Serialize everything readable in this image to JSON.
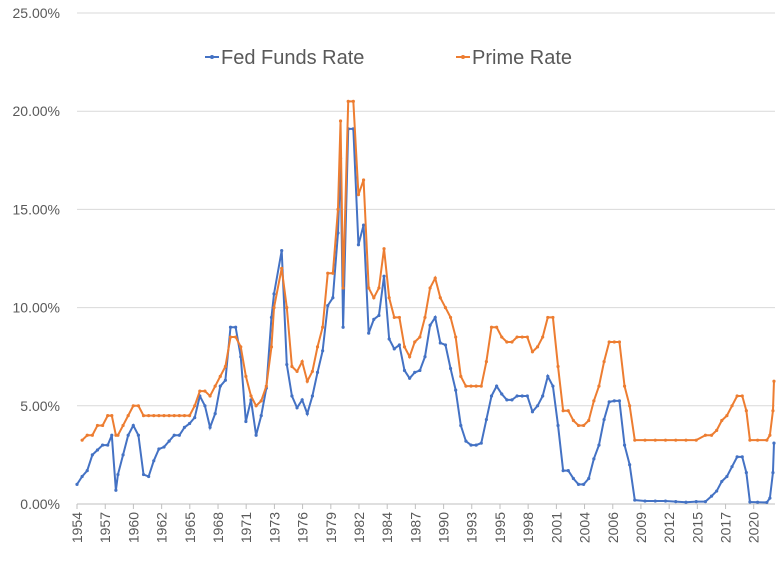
{
  "chart_data": {
    "type": "line",
    "x": [
      1954.5,
      1955,
      1955.5,
      1956,
      1956.5,
      1957,
      1957.5,
      1957.9,
      1958.3,
      1958.5,
      1959,
      1959.5,
      1960,
      1960.5,
      1961,
      1961.5,
      1962,
      1962.5,
      1963,
      1963.5,
      1964,
      1964.5,
      1965,
      1965.5,
      1966,
      1966.5,
      1967,
      1967.5,
      1968,
      1968.5,
      1969,
      1969.5,
      1970,
      1970.5,
      1971,
      1971.5,
      1972,
      1972.5,
      1973,
      1973.5,
      1973.75,
      1974.5,
      1975,
      1975.5,
      1976,
      1976.5,
      1977,
      1977.5,
      1978,
      1978.5,
      1979,
      1979.5,
      1980,
      1980.25,
      1980.5,
      1981,
      1981.5,
      1982,
      1982.5,
      1983,
      1983.5,
      1984,
      1984.5,
      1985,
      1985.5,
      1986,
      1986.5,
      1987,
      1987.5,
      1988,
      1988.5,
      1989,
      1989.5,
      1990,
      1990.5,
      1991,
      1991.5,
      1992,
      1992.5,
      1993,
      1993.5,
      1994,
      1994.5,
      1995,
      1995.5,
      1996,
      1996.5,
      1997,
      1997.5,
      1998,
      1998.5,
      1999,
      1999.5,
      2000,
      2000.5,
      2001,
      2001.5,
      2002,
      2002.5,
      2003,
      2003.5,
      2004,
      2004.5,
      2005,
      2005.5,
      2006,
      2006.5,
      2007,
      2007.5,
      2008,
      2008.5,
      2009,
      2010,
      2011,
      2012,
      2013,
      2014,
      2015,
      2015.9,
      2016.5,
      2017,
      2017.5,
      2018,
      2018.5,
      2019,
      2019.5,
      2019.9,
      2020.25,
      2021,
      2021.9,
      2022.2,
      2022.5,
      2022.6
    ],
    "series": [
      {
        "name": "Fed Funds Rate",
        "color": "#4472c4",
        "values": [
          1.0,
          1.4,
          1.7,
          2.5,
          2.75,
          3.0,
          3.0,
          3.5,
          0.7,
          1.5,
          2.5,
          3.5,
          4.0,
          3.5,
          1.5,
          1.4,
          2.2,
          2.8,
          2.9,
          3.2,
          3.5,
          3.5,
          3.9,
          4.1,
          4.4,
          5.5,
          5.0,
          3.9,
          4.6,
          6.0,
          6.3,
          9.0,
          9.0,
          7.5,
          4.2,
          5.3,
          3.5,
          4.5,
          5.9,
          9.5,
          10.7,
          12.9,
          7.1,
          5.5,
          4.9,
          5.3,
          4.6,
          5.5,
          6.7,
          7.8,
          10.1,
          10.5,
          13.8,
          17.6,
          9.0,
          19.1,
          19.1,
          13.2,
          14.2,
          8.7,
          9.4,
          9.6,
          11.6,
          8.4,
          7.9,
          8.1,
          6.8,
          6.4,
          6.7,
          6.8,
          7.5,
          9.1,
          9.5,
          8.2,
          8.1,
          6.9,
          5.8,
          4.0,
          3.2,
          3.0,
          3.0,
          3.1,
          4.3,
          5.5,
          6.0,
          5.6,
          5.3,
          5.3,
          5.5,
          5.5,
          5.5,
          4.7,
          5.0,
          5.5,
          6.5,
          6.0,
          4.0,
          1.7,
          1.7,
          1.3,
          1.0,
          1.0,
          1.3,
          2.3,
          3.0,
          4.3,
          5.2,
          5.25,
          5.25,
          3.0,
          2.0,
          0.2,
          0.15,
          0.15,
          0.15,
          0.12,
          0.09,
          0.12,
          0.12,
          0.4,
          0.66,
          1.15,
          1.4,
          1.9,
          2.4,
          2.4,
          1.6,
          0.1,
          0.09,
          0.08,
          0.3,
          1.6,
          3.1
        ]
      },
      {
        "name": "Prime Rate",
        "color": "#ed7d31",
        "values": [
          null,
          3.25,
          3.5,
          3.5,
          4.0,
          4.0,
          4.5,
          4.5,
          3.5,
          3.5,
          4.0,
          4.5,
          5.0,
          5.0,
          4.5,
          4.5,
          4.5,
          4.5,
          4.5,
          4.5,
          4.5,
          4.5,
          4.5,
          4.5,
          5.0,
          5.75,
          5.75,
          5.5,
          6.0,
          6.5,
          7.0,
          8.5,
          8.5,
          8.0,
          6.5,
          5.5,
          5.0,
          5.25,
          6.0,
          8.0,
          10.0,
          12.0,
          10.0,
          7.0,
          6.75,
          7.25,
          6.25,
          6.75,
          8.0,
          9.0,
          11.75,
          11.75,
          15.0,
          19.5,
          11.0,
          20.5,
          20.5,
          15.75,
          16.5,
          11.0,
          10.5,
          11.0,
          13.0,
          10.5,
          9.5,
          9.5,
          8.0,
          7.5,
          8.25,
          8.5,
          9.5,
          11.0,
          11.5,
          10.5,
          10.0,
          9.5,
          8.5,
          6.5,
          6.0,
          6.0,
          6.0,
          6.0,
          7.25,
          9.0,
          9.0,
          8.5,
          8.25,
          8.25,
          8.5,
          8.5,
          8.5,
          7.75,
          8.0,
          8.5,
          9.5,
          9.5,
          7.0,
          4.75,
          4.75,
          4.25,
          4.0,
          4.0,
          4.25,
          5.25,
          6.0,
          7.25,
          8.25,
          8.25,
          8.25,
          6.0,
          5.0,
          3.25,
          3.25,
          3.25,
          3.25,
          3.25,
          3.25,
          3.25,
          3.5,
          3.5,
          3.75,
          4.25,
          4.5,
          5.0,
          5.5,
          5.5,
          4.75,
          3.25,
          3.25,
          3.25,
          3.5,
          4.75,
          6.25
        ]
      }
    ],
    "xlim": [
      1954.5,
      2022.7
    ],
    "xticks": [
      {
        "value": 1954.5,
        "label": "1954"
      },
      {
        "value": 1957.26,
        "label": "1957"
      },
      {
        "value": 1960.01,
        "label": "1960"
      },
      {
        "value": 1962.77,
        "label": "1962"
      },
      {
        "value": 1965.52,
        "label": "1965"
      },
      {
        "value": 1968.28,
        "label": "1968"
      },
      {
        "value": 1971.03,
        "label": "1971"
      },
      {
        "value": 1973.79,
        "label": "1973"
      },
      {
        "value": 1976.54,
        "label": "1976"
      },
      {
        "value": 1979.3,
        "label": "1979"
      },
      {
        "value": 1982.05,
        "label": "1982"
      },
      {
        "value": 1984.81,
        "label": "1984"
      },
      {
        "value": 1987.56,
        "label": "1987"
      },
      {
        "value": 1990.32,
        "label": "1990"
      },
      {
        "value": 1993.07,
        "label": "1993"
      },
      {
        "value": 1995.83,
        "label": "1995"
      },
      {
        "value": 1998.58,
        "label": "1998"
      },
      {
        "value": 2001.34,
        "label": "2001"
      },
      {
        "value": 2004.09,
        "label": "2004"
      },
      {
        "value": 2006.85,
        "label": "2006"
      },
      {
        "value": 2009.6,
        "label": "2009"
      },
      {
        "value": 2012.36,
        "label": "2012"
      },
      {
        "value": 2015.11,
        "label": "2015"
      },
      {
        "value": 2017.87,
        "label": "2017"
      },
      {
        "value": 2020.62,
        "label": "2020"
      }
    ],
    "ylim": [
      0,
      25
    ],
    "yticks": [
      {
        "value": 0,
        "label": "0.00%"
      },
      {
        "value": 5,
        "label": "5.00%"
      },
      {
        "value": 10,
        "label": "10.00%"
      },
      {
        "value": 15,
        "label": "15.00%"
      },
      {
        "value": 20,
        "label": "20.00%"
      },
      {
        "value": 25,
        "label": "25.00%"
      }
    ],
    "grid": true,
    "legend": "top"
  }
}
